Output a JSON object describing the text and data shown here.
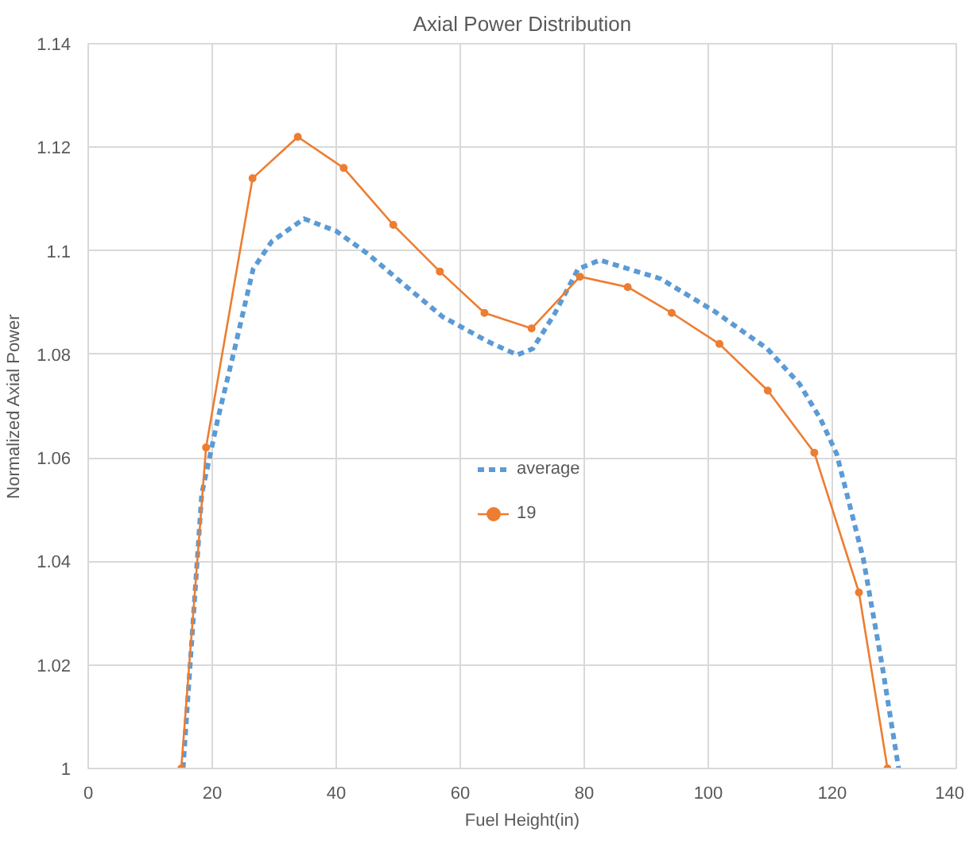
{
  "chart_data": {
    "type": "line",
    "title": "Axial Power Distribution",
    "xlabel": "Fuel Height(in)",
    "ylabel": "Normalized Axial Power",
    "xlim": [
      0,
      140
    ],
    "xticks": [
      0,
      20,
      40,
      60,
      80,
      100,
      120,
      140
    ],
    "ylim": [
      1,
      1.14
    ],
    "yticks": [
      1,
      1.02,
      1.04,
      1.06,
      1.08,
      1.1,
      1.12,
      1.14
    ],
    "grid": true,
    "legend": "center",
    "series": [
      {
        "name": "average",
        "color": "#5b9bd5",
        "line_style": "dashed",
        "marker": "none",
        "x": [
          15.3,
          18.3,
          20.9,
          23.6,
          26.6,
          29.6,
          34.8,
          40,
          45.1,
          50.3,
          57.1,
          64.4,
          69.2,
          71.7,
          75.2,
          79,
          82.5,
          92.3,
          101,
          109.5,
          114.7,
          118.1,
          120.7,
          125,
          128,
          130.7
        ],
        "values": [
          1.0,
          1.053,
          1.0675,
          1.081,
          1.0965,
          1.1018,
          1.1062,
          1.1038,
          1.0994,
          1.0941,
          1.0873,
          1.0825,
          1.0799,
          1.0811,
          1.0878,
          1.0965,
          1.0982,
          1.0946,
          1.0883,
          1.0811,
          1.0743,
          1.0675,
          1.0608,
          1.0405,
          1.0202,
          1.0
        ]
      },
      {
        "name": "19",
        "color": "#ed7d31",
        "line_style": "solid",
        "marker": "circle",
        "x": [
          15,
          19,
          26.5,
          33.8,
          41.2,
          49.2,
          56.7,
          63.9,
          71.5,
          79.3,
          87,
          94.1,
          101.8,
          109.6,
          117.1,
          124.3,
          128.9
        ],
        "values": [
          1.0,
          1.062,
          1.114,
          1.122,
          1.116,
          1.105,
          1.096,
          1.088,
          1.085,
          1.095,
          1.093,
          1.088,
          1.082,
          1.073,
          1.061,
          1.034,
          1.0
        ]
      }
    ]
  }
}
